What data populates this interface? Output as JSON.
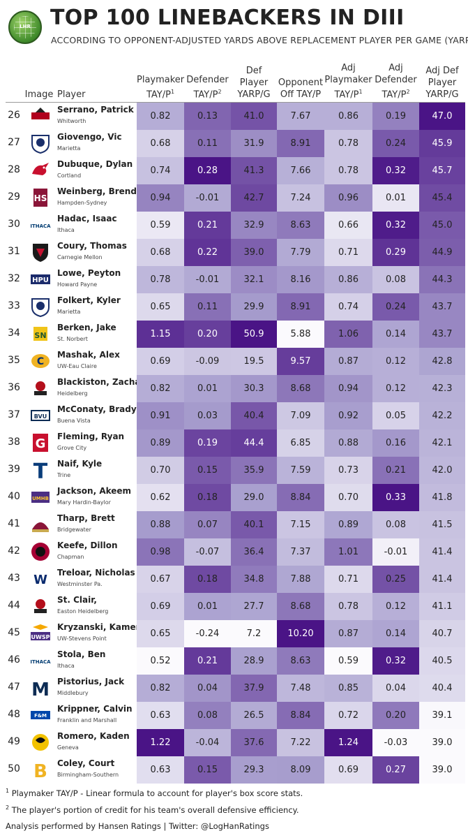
{
  "header": {
    "title": "TOP 100 LINEBACKERS IN DIII",
    "subtitle": "ACCORDING TO OPPONENT-ADJUSTED YARDS ABOVE REPLACEMENT PLAYER PER GAME (YARP/G)",
    "logo_text": "LHR"
  },
  "columns": {
    "image": "Image",
    "player": "Player",
    "stats": [
      {
        "l1": "Playmaker",
        "l2": "TAY/P",
        "sup": "1"
      },
      {
        "l1": "Defender",
        "l2": "TAY/P",
        "sup": "2"
      },
      {
        "l1": "Def",
        "l2": "Player",
        "l3": "YARP/G"
      },
      {
        "l1": "Opponent",
        "l2": "Off TAY/P"
      },
      {
        "l1": "Adj",
        "l2": "Playmaker",
        "l3": "TAY/P",
        "sup": "1"
      },
      {
        "l1": "Adj",
        "l2": "Defender",
        "l3": "TAY/P",
        "sup": "2"
      },
      {
        "l1": "Adj Def",
        "l2": "Player",
        "l3": "YARP/G"
      }
    ]
  },
  "chart_data": {
    "type": "table",
    "title": "TOP 100 LINEBACKERS IN DIII",
    "subtitle": "ACCORDING TO OPPONENT-ADJUSTED YARDS ABOVE REPLACEMENT PLAYER PER GAME (YARP/G)",
    "columns": [
      "Playmaker TAY/P",
      "Defender TAY/P",
      "Def Player YARP/G",
      "Opponent Off TAY/P",
      "Adj Playmaker TAY/P",
      "Adj Defender TAY/P",
      "Adj Def Player YARP/G"
    ],
    "rows": [
      {
        "rank": "26",
        "player": "Serrano, Patrick",
        "school": "Whitworth",
        "logo_icon": "whitworth-pirates-logo-icon",
        "values": [
          "0.82",
          "0.13",
          "41.0",
          "7.67",
          "0.86",
          "0.19",
          "47.0"
        ]
      },
      {
        "rank": "27",
        "player": "Giovengo, Vic",
        "school": "Marietta",
        "logo_icon": "marietta-pioneer-logo-icon",
        "values": [
          "0.68",
          "0.11",
          "31.9",
          "8.91",
          "0.78",
          "0.24",
          "45.9"
        ]
      },
      {
        "rank": "28",
        "player": "Dubuque, Dylan",
        "school": "Cortland",
        "logo_icon": "cortland-dragon-logo-icon",
        "values": [
          "0.74",
          "0.28",
          "41.3",
          "7.66",
          "0.78",
          "0.32",
          "45.7"
        ]
      },
      {
        "rank": "29",
        "player": "Weinberg, Brendan",
        "school": "Hampden-Sydney",
        "logo_icon": "hampden-sydney-logo-icon",
        "values": [
          "0.94",
          "-0.01",
          "42.7",
          "7.24",
          "0.96",
          "0.01",
          "45.4"
        ]
      },
      {
        "rank": "30",
        "player": "Hadac, Isaac",
        "school": "Ithaca",
        "logo_icon": "ithaca-logo-icon",
        "values": [
          "0.59",
          "0.21",
          "32.9",
          "8.63",
          "0.66",
          "0.32",
          "45.0"
        ]
      },
      {
        "rank": "31",
        "player": "Coury, Thomas",
        "school": "Carnegie Mellon",
        "logo_icon": "carnegie-mellon-logo-icon",
        "values": [
          "0.68",
          "0.22",
          "39.0",
          "7.79",
          "0.71",
          "0.29",
          "44.9"
        ]
      },
      {
        "rank": "32",
        "player": "Lowe, Peyton",
        "school": "Howard Payne",
        "logo_icon": "howard-payne-logo-icon",
        "values": [
          "0.78",
          "-0.01",
          "32.1",
          "8.16",
          "0.86",
          "0.08",
          "44.3"
        ]
      },
      {
        "rank": "33",
        "player": "Folkert, Kyler",
        "school": "Marietta",
        "logo_icon": "marietta-pioneer-logo-icon",
        "values": [
          "0.65",
          "0.11",
          "29.9",
          "8.91",
          "0.74",
          "0.24",
          "43.7"
        ]
      },
      {
        "rank": "34",
        "player": "Berken, Jake",
        "school": "St. Norbert",
        "logo_icon": "st-norbert-logo-icon",
        "values": [
          "1.15",
          "0.20",
          "50.9",
          "5.88",
          "1.06",
          "0.14",
          "43.7"
        ]
      },
      {
        "rank": "35",
        "player": "Mashak, Alex",
        "school": "UW-Eau Claire",
        "logo_icon": "uw-eau-claire-logo-icon",
        "values": [
          "0.69",
          "-0.09",
          "19.5",
          "9.57",
          "0.87",
          "0.12",
          "42.8"
        ]
      },
      {
        "rank": "36",
        "player": "Blackiston, Zachary",
        "school": "Heidelberg",
        "logo_icon": "heidelberg-logo-icon",
        "values": [
          "0.82",
          "0.01",
          "30.3",
          "8.68",
          "0.94",
          "0.12",
          "42.3"
        ]
      },
      {
        "rank": "37",
        "player": "McConaty, Brady",
        "school": "Buena Vista",
        "logo_icon": "buena-vista-logo-icon",
        "values": [
          "0.91",
          "0.03",
          "40.4",
          "7.09",
          "0.92",
          "0.05",
          "42.2"
        ]
      },
      {
        "rank": "38",
        "player": "Fleming, Ryan",
        "school": "Grove City",
        "logo_icon": "grove-city-logo-icon",
        "values": [
          "0.89",
          "0.19",
          "44.4",
          "6.85",
          "0.88",
          "0.16",
          "42.1"
        ]
      },
      {
        "rank": "39",
        "player": "Naif, Kyle",
        "school": "Trine",
        "logo_icon": "trine-logo-icon",
        "values": [
          "0.70",
          "0.15",
          "35.9",
          "7.59",
          "0.73",
          "0.21",
          "42.0"
        ]
      },
      {
        "rank": "40",
        "player": "Jackson, Akeem",
        "school": "Mary Hardin-Baylor",
        "logo_icon": "umhb-logo-icon",
        "values": [
          "0.62",
          "0.18",
          "29.0",
          "8.84",
          "0.70",
          "0.33",
          "41.8"
        ]
      },
      {
        "rank": "41",
        "player": "Tharp, Brett",
        "school": "Bridgewater",
        "logo_icon": "bridgewater-logo-icon",
        "values": [
          "0.88",
          "0.07",
          "40.1",
          "7.15",
          "0.89",
          "0.08",
          "41.5"
        ]
      },
      {
        "rank": "42",
        "player": "Keefe, Dillon",
        "school": "Chapman",
        "logo_icon": "chapman-logo-icon",
        "values": [
          "0.98",
          "-0.07",
          "36.4",
          "7.37",
          "1.01",
          "-0.01",
          "41.4"
        ]
      },
      {
        "rank": "43",
        "player": "Treloar, Nicholas",
        "school": "Westminster Pa.",
        "logo_icon": "westminster-logo-icon",
        "values": [
          "0.67",
          "0.18",
          "34.8",
          "7.88",
          "0.71",
          "0.25",
          "41.4"
        ]
      },
      {
        "rank": "44",
        "player": "St. Clair,",
        "school": "Easton Heidelberg",
        "logo_icon": "heidelberg-logo-icon",
        "values": [
          "0.69",
          "0.01",
          "27.7",
          "8.68",
          "0.78",
          "0.12",
          "41.1"
        ]
      },
      {
        "rank": "45",
        "player": "Kryzanski, Kameron",
        "school": "UW-Stevens Point",
        "logo_icon": "uwsp-logo-icon",
        "values": [
          "0.65",
          "-0.24",
          "7.2",
          "10.20",
          "0.87",
          "0.14",
          "40.7"
        ]
      },
      {
        "rank": "46",
        "player": "Stola, Ben",
        "school": "Ithaca",
        "logo_icon": "ithaca-logo-icon",
        "values": [
          "0.52",
          "0.21",
          "28.9",
          "8.63",
          "0.59",
          "0.32",
          "40.5"
        ]
      },
      {
        "rank": "47",
        "player": "Pistorius, Jack",
        "school": "Middlebury",
        "logo_icon": "middlebury-logo-icon",
        "values": [
          "0.82",
          "0.04",
          "37.9",
          "7.48",
          "0.85",
          "0.04",
          "40.4"
        ]
      },
      {
        "rank": "48",
        "player": "Krippner, Calvin",
        "school": "Franklin and Marshall",
        "logo_icon": "franklin-marshall-logo-icon",
        "values": [
          "0.63",
          "0.08",
          "26.5",
          "8.84",
          "0.72",
          "0.20",
          "39.1"
        ]
      },
      {
        "rank": "49",
        "player": "Romero, Kaden",
        "school": "Geneva",
        "logo_icon": "geneva-golden-tornado-logo-icon",
        "values": [
          "1.22",
          "-0.04",
          "37.6",
          "7.22",
          "1.24",
          "-0.03",
          "39.0"
        ]
      },
      {
        "rank": "50",
        "player": "Coley, Court",
        "school": "Birmingham-Southern",
        "logo_icon": "birmingham-southern-logo-icon",
        "values": [
          "0.63",
          "0.15",
          "29.3",
          "8.09",
          "0.69",
          "0.27",
          "39.0"
        ]
      }
    ],
    "color_scale": {
      "low": "#fbfafd",
      "mid": "#a9a0cf",
      "high": "#4a1486"
    }
  },
  "footnotes": [
    {
      "sup": "1",
      "text": "Playmaker TAY/P - Linear formula to account for player's box score stats."
    },
    {
      "sup": "2",
      "text": "The player's portion of credit for his team's overall defensive efficiency."
    },
    {
      "sup": "",
      "text": "Analysis performed by Hansen Ratings | Twitter: @LogHanRatings"
    }
  ]
}
